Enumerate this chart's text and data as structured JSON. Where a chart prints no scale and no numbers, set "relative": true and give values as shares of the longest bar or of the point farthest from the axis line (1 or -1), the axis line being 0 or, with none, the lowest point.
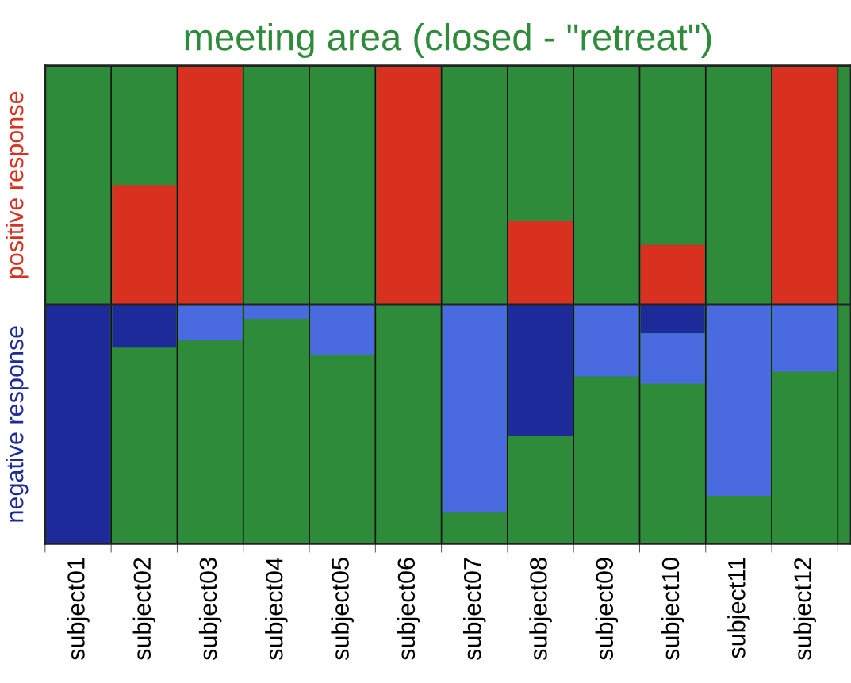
{
  "chart_data": {
    "type": "bar",
    "title": "meeting area (closed - \"retreat\")",
    "relative": true,
    "stacked": true,
    "grid": "x",
    "categories": [
      "subject01",
      "subject02",
      "subject03",
      "subject04",
      "subject05",
      "subject06",
      "subject07",
      "subject08",
      "subject09",
      "subject10",
      "subject11",
      "subject12"
    ],
    "series": [
      {
        "name": "positive response",
        "color": "#d9311f",
        "values": [
          0,
          0.5,
          1,
          0,
          0,
          1,
          0,
          0.35,
          0,
          0.25,
          0,
          1
        ]
      },
      {
        "name": "negative response",
        "color": "#1c2a9a",
        "values": [
          -1,
          -0.18,
          0,
          0,
          0,
          0,
          0,
          -0.55,
          0,
          -0.12,
          0,
          0
        ]
      },
      {
        "color": "#4a6be0",
        "values": [
          0,
          0,
          -0.15,
          -0.06,
          -0.21,
          0,
          -0.87,
          0,
          -0.3,
          -0.21,
          -0.8,
          -0.28
        ]
      }
    ]
  }
}
